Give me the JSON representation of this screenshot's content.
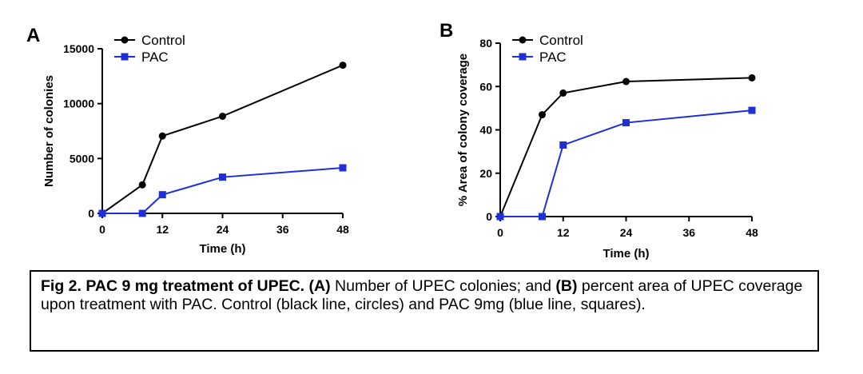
{
  "colors": {
    "control": "#000000",
    "pac": "#1f2fd6"
  },
  "chart_data": [
    {
      "type": "line",
      "panel_label": "A",
      "xlabel": "Time (h)",
      "ylabel": "Number of colonies",
      "xlim": [
        0,
        48
      ],
      "ylim": [
        0,
        15000
      ],
      "xticks": [
        0,
        12,
        24,
        36,
        48
      ],
      "yticks": [
        0,
        5000,
        10000,
        15000
      ],
      "legend_placement": "top-left",
      "grid": false,
      "series": [
        {
          "name": "Control",
          "marker": "circle",
          "color": "#000000",
          "x": [
            0,
            8,
            12,
            24,
            48
          ],
          "y": [
            0,
            2600,
            7050,
            8850,
            13500
          ]
        },
        {
          "name": "PAC",
          "marker": "square",
          "color": "#1f2fd6",
          "x": [
            0,
            8,
            12,
            24,
            48
          ],
          "y": [
            0,
            0,
            1700,
            3300,
            4150
          ]
        }
      ]
    },
    {
      "type": "line",
      "panel_label": "B",
      "xlabel": "Time (h)",
      "ylabel": "% Area of colony coverage",
      "xlim": [
        0,
        48
      ],
      "ylim": [
        0,
        80
      ],
      "xticks": [
        0,
        12,
        24,
        36,
        48
      ],
      "yticks": [
        0,
        20,
        40,
        60,
        80
      ],
      "legend_placement": "top-left",
      "grid": false,
      "series": [
        {
          "name": "Control",
          "marker": "circle",
          "color": "#000000",
          "x": [
            0,
            8,
            12,
            24,
            48
          ],
          "y": [
            0,
            47,
            57,
            62.3,
            64
          ]
        },
        {
          "name": "PAC",
          "marker": "square",
          "color": "#1f2fd6",
          "x": [
            0,
            8,
            12,
            24,
            48
          ],
          "y": [
            0,
            0,
            33,
            43.3,
            49
          ]
        }
      ]
    }
  ],
  "caption": {
    "bold_title": "Fig 2. PAC 9 mg treatment of UPEC.",
    "label_a": "(A)",
    "text_a": " Number of UPEC colonies; and ",
    "label_b": "(B)",
    "text_b": " percent area of UPEC coverage upon treatment with PAC. Control (black line, circles) and PAC 9mg (blue line, squares)."
  }
}
